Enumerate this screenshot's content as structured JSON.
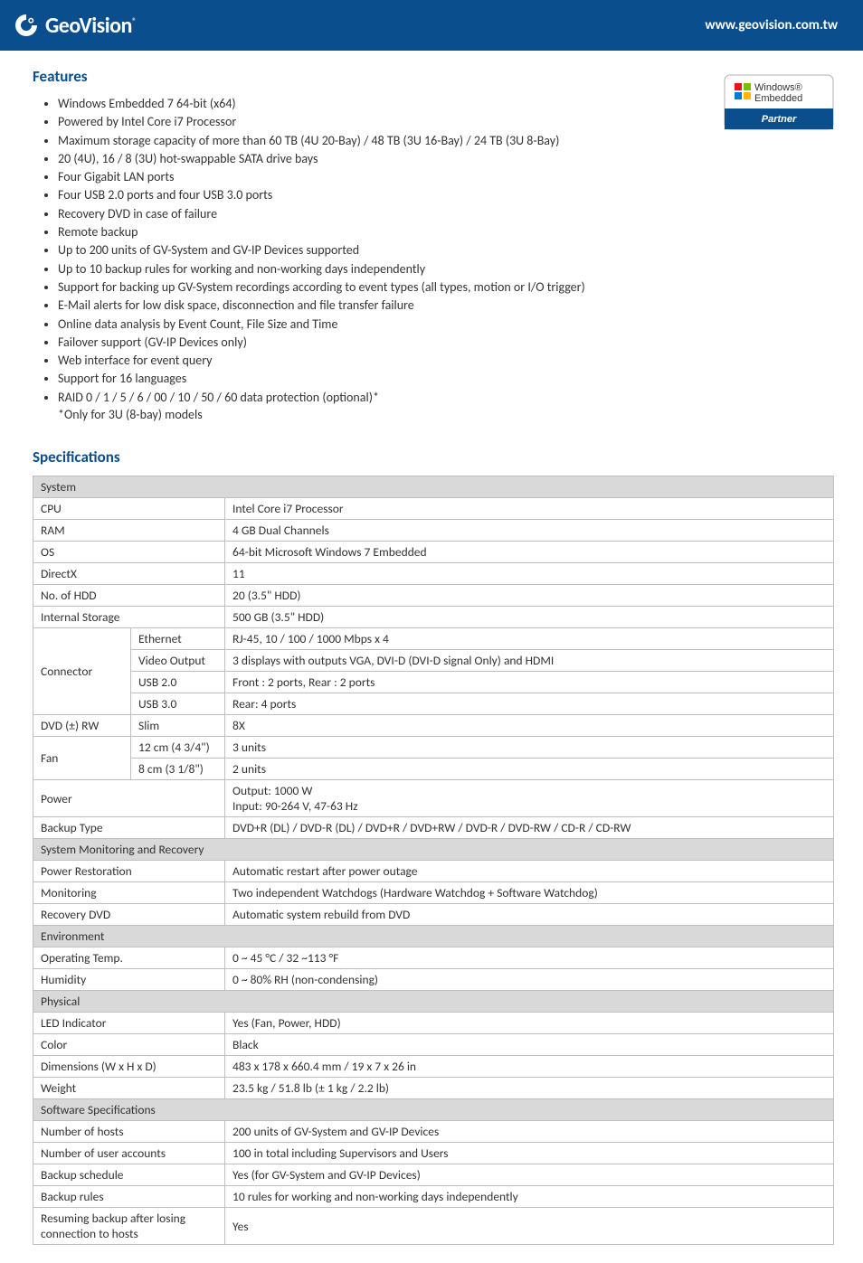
{
  "header": {
    "logo_text": "GeoVision",
    "url": "www.geovision.com.tw"
  },
  "features": {
    "title": "Features",
    "items": [
      "Windows Embedded 7 64-bit (x64)",
      "Powered by Intel Core i7 Processor",
      "Maximum storage capacity of more than 60 TB (4U 20-Bay) / 48 TB (3U 16-Bay) / 24 TB (3U 8-Bay)",
      "20 (4U), 16 / 8 (3U) hot-swappable SATA drive bays",
      "Four Gigabit LAN ports",
      "Four USB 2.0 ports and four USB 3.0 ports",
      "Recovery DVD in case of failure",
      "Remote backup",
      "Up to 200 units of GV-System and GV-IP Devices supported",
      "Up to 10 backup rules for working and non-working days independently",
      "Support for backing up GV-System recordings according to event types (all types, motion or I/O trigger)",
      "E-Mail alerts for low disk space, disconnection and file transfer failure",
      "Online data analysis by Event Count, File Size and Time",
      "Failover support (GV-IP Devices only)",
      "Web interface for event query",
      "Support for 16 languages",
      "RAID 0 / 1 / 5 / 6 / 00 / 10 / 50 / 60 data protection (optional)*"
    ],
    "note": "*Only for 3U (8-bay) models"
  },
  "badge": {
    "line1": "Windows®",
    "line2": "Embedded",
    "partner": "Partner",
    "blue": "#0078d7",
    "red": "#e81123",
    "green": "#7fba00",
    "yellow": "#ffb900"
  },
  "specs": {
    "title": "Specifications",
    "sections": [
      {
        "header": "System",
        "rows": [
          {
            "label": "CPU",
            "value": "Intel Core i7 Processor"
          },
          {
            "label": "RAM",
            "value": "4 GB Dual Channels"
          },
          {
            "label": "OS",
            "value": "64-bit Microsoft Windows 7 Embedded"
          },
          {
            "label": "DirectX",
            "value": "11"
          },
          {
            "label": "No. of HDD",
            "value": "20 (3.5\" HDD)"
          },
          {
            "label": "Internal Storage",
            "value": "500 GB (3.5\" HDD)"
          }
        ]
      },
      {
        "group": "Connector",
        "rows": [
          {
            "sub": "Ethernet",
            "value": "RJ-45, 10 / 100 / 1000 Mbps x 4"
          },
          {
            "sub": "Video Output",
            "value": "3 displays with outputs VGA, DVI-D (DVI-D signal Only) and HDMI"
          },
          {
            "sub": "USB 2.0",
            "value": "Front : 2 ports, Rear : 2 ports"
          },
          {
            "sub": "USB 3.0",
            "value": "Rear: 4 ports"
          }
        ]
      },
      {
        "group": "DVD (±) RW",
        "rows": [
          {
            "sub": "Slim",
            "value": "8X"
          }
        ]
      },
      {
        "group": "Fan",
        "rows": [
          {
            "sub": "12 cm (4 3/4\")",
            "value": "3 units"
          },
          {
            "sub": "8 cm (3 1/8\")",
            "value": "2 units"
          }
        ]
      },
      {
        "simple": true,
        "rows": [
          {
            "label": "Power",
            "value": "Output: 1000 W\nInput: 90-264 V, 47-63 Hz"
          },
          {
            "label": "Backup Type",
            "value": "DVD+R (DL) / DVD-R (DL) / DVD+R / DVD+RW / DVD-R / DVD-RW / CD-R / CD-RW"
          }
        ]
      },
      {
        "header": "System Monitoring and Recovery",
        "rows": [
          {
            "label": "Power Restoration",
            "value": "Automatic restart after power outage"
          },
          {
            "label": "Monitoring",
            "value": "Two independent Watchdogs (Hardware Watchdog + Software Watchdog)"
          },
          {
            "label": "Recovery DVD",
            "value": "Automatic system rebuild from DVD"
          }
        ]
      },
      {
        "header": "Environment",
        "rows": [
          {
            "label": "Operating Temp.",
            "value": "0 ~ 45 °C / 32 ~113 °F"
          },
          {
            "label": "Humidity",
            "value": "0 ~ 80% RH (non-condensing)"
          }
        ]
      },
      {
        "header": "Physical",
        "rows": [
          {
            "label": "LED Indicator",
            "value": "Yes (Fan, Power, HDD)"
          },
          {
            "label": "Color",
            "value": "Black"
          },
          {
            "label": "Dimensions (W x H x D)",
            "value": "483 x 178 x 660.4 mm / 19 x 7 x 26 in"
          },
          {
            "label": "Weight",
            "value": "23.5 kg / 51.8 lb (± 1 kg / 2.2 lb)"
          }
        ]
      },
      {
        "header": "Software Specifications",
        "rows": [
          {
            "label": "Number of hosts",
            "value": "200 units of GV-System and GV-IP Devices"
          },
          {
            "label": "Number of user accounts",
            "value": "100 in total including Supervisors and Users"
          },
          {
            "label": "Backup schedule",
            "value": "Yes (for GV-System and GV-IP Devices)"
          },
          {
            "label": "Backup rules",
            "value": "10 rules for working and non-working days independently"
          },
          {
            "label": "Resuming backup after losing connection to hosts",
            "value": "Yes"
          }
        ]
      }
    ]
  },
  "colors": {
    "header_bg": "#0b4e8d",
    "section_bg": "#d9d9d9",
    "border": "#bfbfbf",
    "title": "#0b4e8d"
  }
}
